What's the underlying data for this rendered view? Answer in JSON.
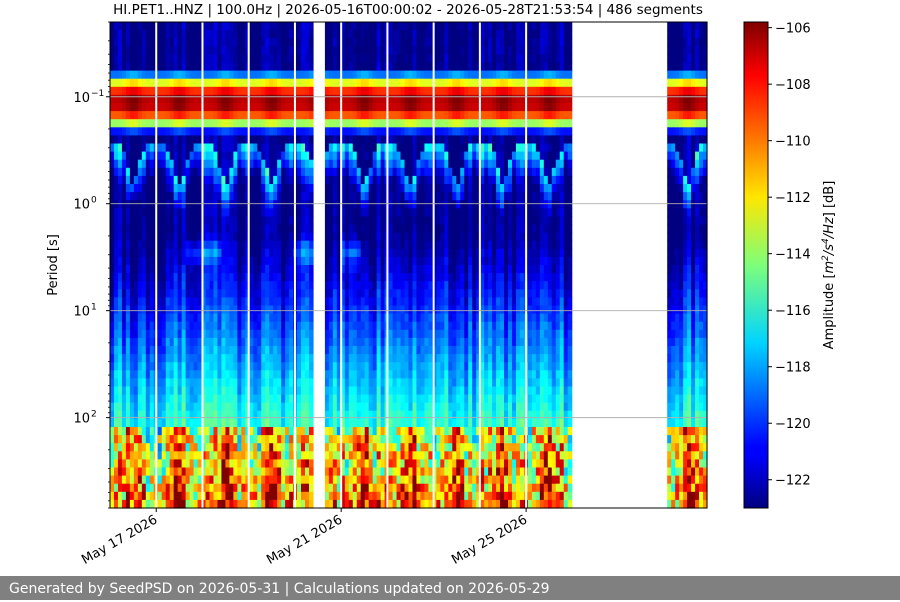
{
  "chart_data": {
    "type": "heatmap",
    "title": "HI.PET1..HNZ | 100.0Hz | 2026-05-16T00:00:02 - 2026-05-28T21:53:54 | 486 segments",
    "ylabel": "Period [s]",
    "colorbar_label": "Amplitude [m²/s⁴/Hz] [dB]",
    "x_start": "2026-05-16T00:00:02",
    "x_end": "2026-05-28T21:53:54",
    "x_ticks": [
      "May 17 2026",
      "May 21 2026",
      "May 25 2026"
    ],
    "x_tick_days": [
      1,
      5,
      9
    ],
    "y_scale": "log",
    "y_inverted": true,
    "ylim": [
      0.02,
      700
    ],
    "y_ticks": [
      {
        "value": 0.1,
        "base": "10",
        "exp": "−1"
      },
      {
        "value": 1,
        "base": "10",
        "exp": "0"
      },
      {
        "value": 10,
        "base": "10",
        "exp": "1"
      },
      {
        "value": 100,
        "base": "10",
        "exp": "2"
      }
    ],
    "colorbar_range": [
      -123,
      -105.8
    ],
    "colorbar_ticks": [
      "−106",
      "−108",
      "−110",
      "−112",
      "−114",
      "−116",
      "−118",
      "−120",
      "−122"
    ],
    "colorbar_tick_values": [
      -106,
      -108,
      -110,
      -112,
      -114,
      -116,
      -118,
      -120,
      -122
    ],
    "colormap": "jet",
    "data_gaps_days": [
      [
        4.4,
        4.65
      ],
      [
        10.0,
        12.05
      ]
    ],
    "grid": "horizontal major gridlines",
    "segments": 486
  },
  "footer": {
    "text": "Generated by SeedPSD on 2026-05-31 | Calculations updated on 2026-05-29"
  }
}
